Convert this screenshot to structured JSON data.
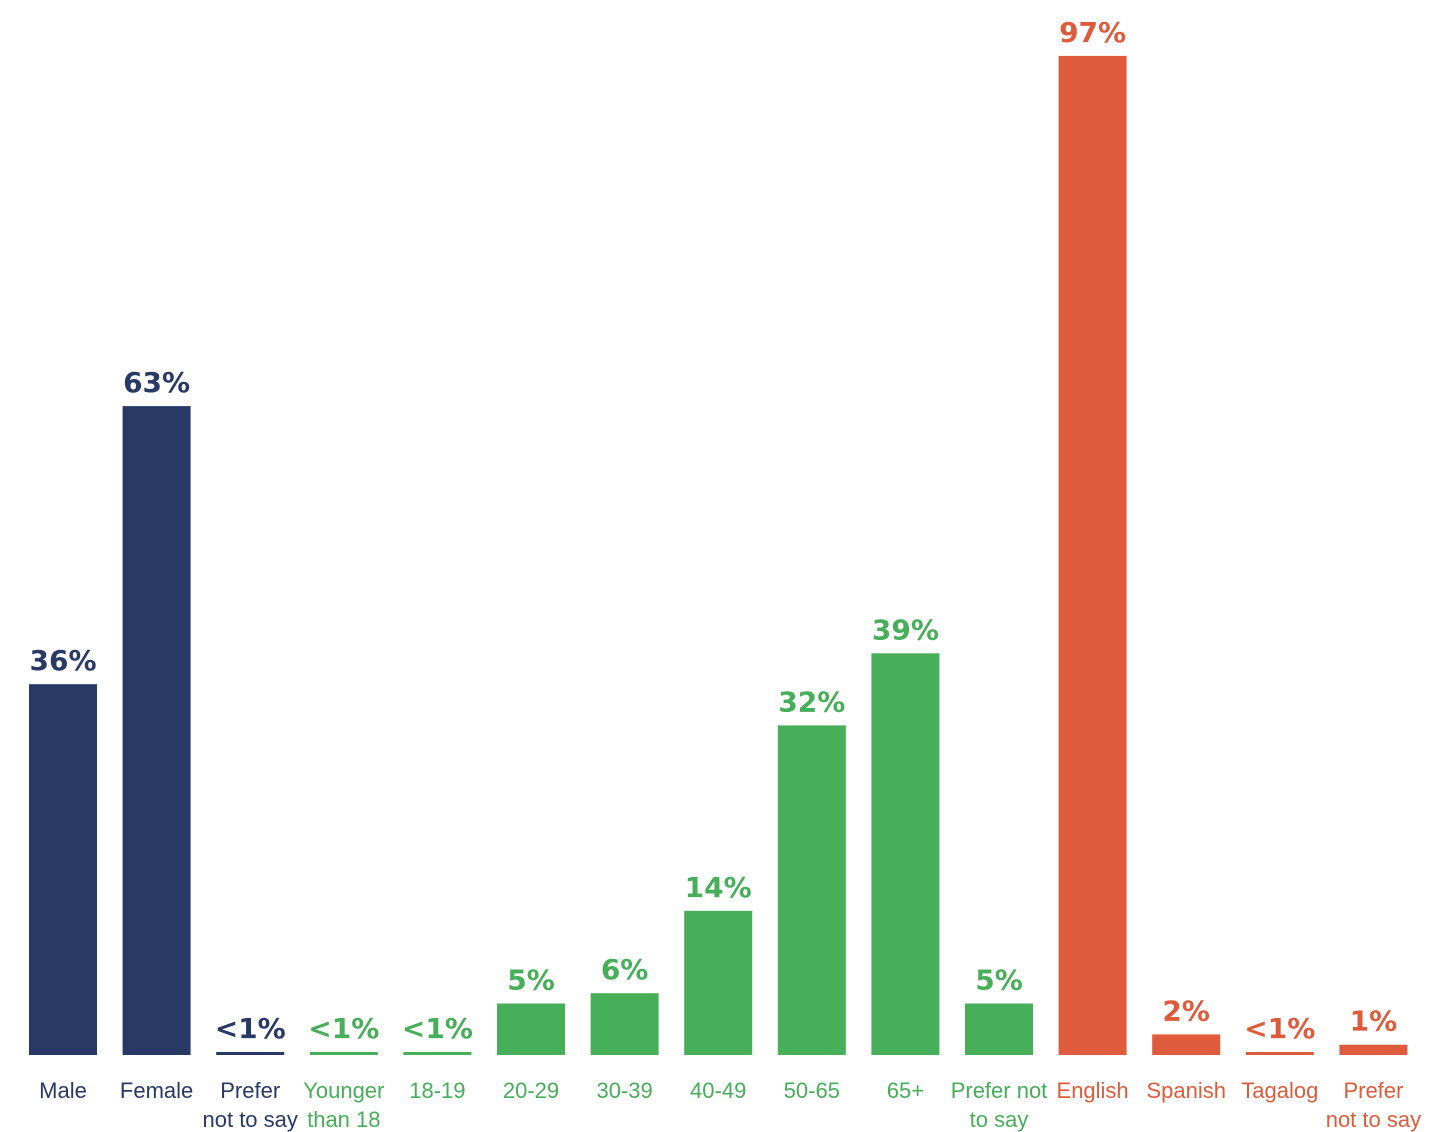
{
  "chart_data": {
    "type": "bar",
    "title": "",
    "xlabel": "",
    "ylabel": "",
    "ylim": [
      0,
      100
    ],
    "grid": false,
    "legend": "none",
    "colors": {
      "gender": "#283966",
      "age": "#47ae5a",
      "language": "#de5b3c"
    },
    "bars": [
      {
        "label": [
          "Male"
        ],
        "value": 36,
        "display": "36%",
        "group": "gender"
      },
      {
        "label": [
          "Female"
        ],
        "value": 63,
        "display": "63%",
        "group": "gender"
      },
      {
        "label": [
          "Prefer",
          "not to say"
        ],
        "value": 0.2,
        "display": "<1%",
        "group": "gender"
      },
      {
        "label": [
          "Younger",
          "than 18"
        ],
        "value": 0.2,
        "display": "<1%",
        "group": "age"
      },
      {
        "label": [
          "18-19"
        ],
        "value": 0.2,
        "display": "<1%",
        "group": "age"
      },
      {
        "label": [
          "20-29"
        ],
        "value": 5,
        "display": "5%",
        "group": "age"
      },
      {
        "label": [
          "30-39"
        ],
        "value": 6,
        "display": "6%",
        "group": "age"
      },
      {
        "label": [
          "40-49"
        ],
        "value": 14,
        "display": "14%",
        "group": "age"
      },
      {
        "label": [
          "50-65"
        ],
        "value": 32,
        "display": "32%",
        "group": "age"
      },
      {
        "label": [
          "65+"
        ],
        "value": 39,
        "display": "39%",
        "group": "age"
      },
      {
        "label": [
          "Prefer not",
          "to say"
        ],
        "value": 5,
        "display": "5%",
        "group": "age"
      },
      {
        "label": [
          "English"
        ],
        "value": 97,
        "display": "97%",
        "group": "language"
      },
      {
        "label": [
          "Spanish"
        ],
        "value": 2,
        "display": "2%",
        "group": "language"
      },
      {
        "label": [
          "Tagalog"
        ],
        "value": 0.2,
        "display": "<1%",
        "group": "language"
      },
      {
        "label": [
          "Prefer",
          "not to say"
        ],
        "value": 1,
        "display": "1%",
        "group": "language"
      }
    ]
  }
}
